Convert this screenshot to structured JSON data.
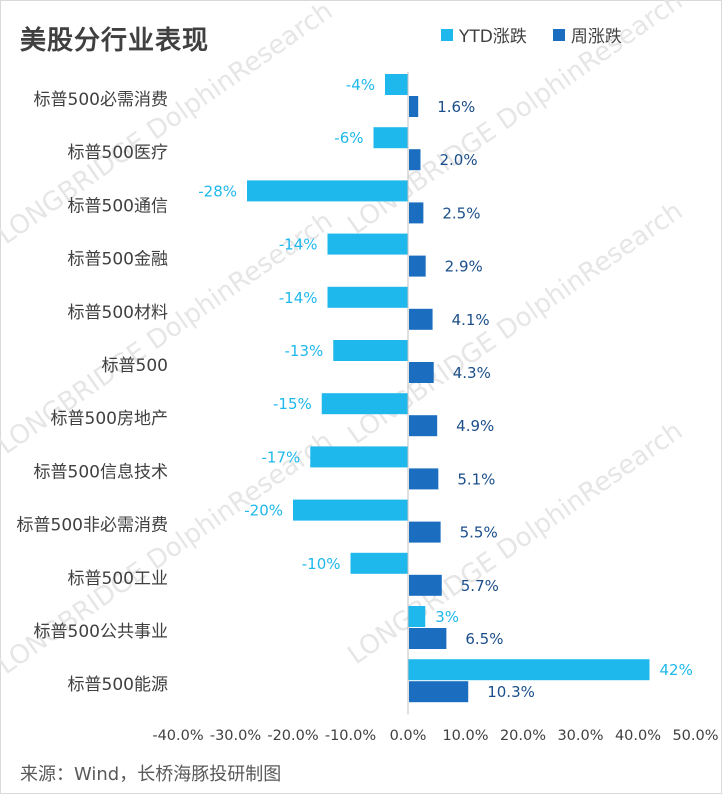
{
  "chart_data": {
    "type": "bar",
    "orientation": "horizontal",
    "title": "美股分行业表现",
    "categories": [
      "标普500必需消费",
      "标普500医疗",
      "标普500通信",
      "标普500金融",
      "标普500材料",
      "标普500",
      "标普500房地产",
      "标普500信息技术",
      "标普500非必需消费",
      "标普500工业",
      "标普500公共事业",
      "标普500能源"
    ],
    "series": [
      {
        "name": "YTD涨跌",
        "color": "#1fb8ec",
        "values": [
          -4,
          -6,
          -28,
          -14,
          -14,
          -13,
          -15,
          -17,
          -20,
          -10,
          3,
          42
        ],
        "labels": [
          "-4%",
          "-6%",
          "-28%",
          "-14%",
          "-14%",
          "-13%",
          "-15%",
          "-17%",
          "-20%",
          "-10%",
          "3%",
          "42%"
        ],
        "label_color": "#1fb8ec"
      },
      {
        "name": "周涨跌",
        "color": "#1b6dbf",
        "values": [
          1.6,
          2.0,
          2.5,
          2.9,
          4.1,
          4.3,
          4.9,
          5.1,
          5.5,
          5.7,
          6.5,
          10.3
        ],
        "labels": [
          "1.6%",
          "2.0%",
          "2.5%",
          "2.9%",
          "4.1%",
          "4.3%",
          "4.9%",
          "5.1%",
          "5.5%",
          "5.7%",
          "6.5%",
          "10.3%"
        ],
        "label_color": "#1b4e8a"
      }
    ],
    "xlim": [
      -40,
      50
    ],
    "xticks": [
      -40,
      -30,
      -20,
      -10,
      0,
      10,
      20,
      30,
      40,
      50
    ],
    "xtick_labels": [
      "-40.0%",
      "-30.0%",
      "-20.0%",
      "-10.0%",
      "0.0%",
      "10.0%",
      "20.0%",
      "30.0%",
      "40.0%",
      "50.0%"
    ],
    "legend": "top-right",
    "grid": false
  },
  "source": "来源：Wind，长桥海豚投研制图",
  "watermark": "LONGBRIDGE DolphinResearch"
}
